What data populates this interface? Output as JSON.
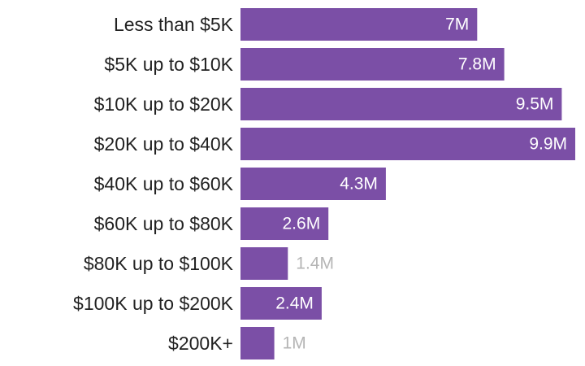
{
  "colors": {
    "bar": "#7b4fa6",
    "label_inside": "#ffffff",
    "label_outside": "#b5b5b5",
    "category_text": "#222222"
  },
  "chart_data": {
    "type": "bar",
    "orientation": "horizontal",
    "title": "",
    "xlabel": "",
    "ylabel": "",
    "unit": "M",
    "categories": [
      "Less than $5K",
      "$5K up to $10K",
      "$10K up to $20K",
      "$20K up to $40K",
      "$40K up to $60K",
      "$60K up to $80K",
      "$80K up to $100K",
      "$100K up to $200K",
      "$200K+"
    ],
    "values": [
      7,
      7.8,
      9.5,
      9.9,
      4.3,
      2.6,
      1.4,
      2.4,
      1
    ],
    "value_labels": [
      "7M",
      "7.8M",
      "9.5M",
      "9.9M",
      "4.3M",
      "2.6M",
      "1.4M",
      "2.4M",
      "1M"
    ],
    "label_position": [
      "inside",
      "inside",
      "inside",
      "inside",
      "inside",
      "inside",
      "outside",
      "inside",
      "outside"
    ],
    "xlim": [
      0,
      9.9
    ],
    "grid": false,
    "legend": "none"
  }
}
